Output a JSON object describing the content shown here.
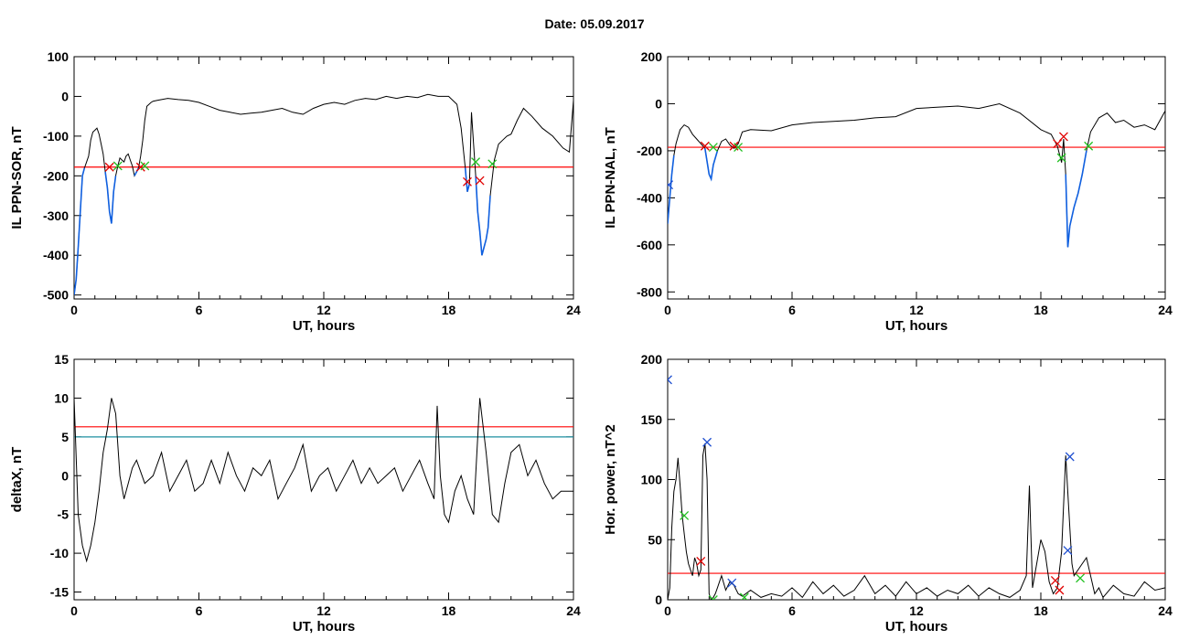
{
  "header": {
    "date_label": "Date:  05.09.2017"
  },
  "colors": {
    "signal": "#000000",
    "highlight": "#1060e0",
    "threshold": "#ff0000",
    "threshold2": "#1e8fa0",
    "onset": "#e00000",
    "end": "#20c020",
    "peak": "#2050d0"
  },
  "chart_data": [
    {
      "id": "sor",
      "type": "line",
      "title": "",
      "xlabel": "UT, hours",
      "ylabel": "IL PPN-SOR, nT",
      "xlim": [
        0,
        24
      ],
      "ylim": [
        -510,
        100
      ],
      "xticks": [
        0,
        6,
        12,
        18,
        24
      ],
      "yticks": [
        100,
        0,
        -100,
        -200,
        -300,
        -400,
        -500
      ],
      "thresholds": [
        {
          "value": -178,
          "color": "#ff0000"
        }
      ],
      "series": [
        {
          "x": [
            0,
            0.1,
            0.2,
            0.3,
            0.4,
            0.5,
            0.6,
            0.7,
            0.8,
            0.9,
            1.0,
            1.1,
            1.2,
            1.3,
            1.4,
            1.5,
            1.6,
            1.7,
            1.8,
            1.9,
            2.0,
            2.1,
            2.2,
            2.3,
            2.4,
            2.5,
            2.6,
            2.7,
            2.8,
            2.9,
            3.0,
            3.1,
            3.2,
            3.3,
            3.4,
            3.5,
            3.6,
            3.7,
            3.8,
            4,
            4.5,
            5,
            5.5,
            6,
            6.5,
            7,
            7.5,
            8,
            8.5,
            9,
            9.5,
            10,
            10.5,
            11,
            11.5,
            12,
            12.5,
            13,
            13.5,
            14,
            14.5,
            15,
            15.5,
            16,
            16.5,
            17,
            17.5,
            18,
            18.4,
            18.6,
            18.8,
            18.9,
            19.0,
            19.1,
            19.2,
            19.3,
            19.4,
            19.5,
            19.6,
            19.7,
            19.8,
            19.9,
            20.0,
            20.2,
            20.4,
            20.6,
            20.8,
            21.0,
            21.3,
            21.6,
            22,
            22.5,
            23,
            23.5,
            23.8,
            24
          ],
          "y": [
            -500,
            -460,
            -380,
            -290,
            -200,
            -180,
            -165,
            -150,
            -110,
            -90,
            -85,
            -80,
            -95,
            -120,
            -145,
            -190,
            -230,
            -290,
            -320,
            -240,
            -200,
            -175,
            -155,
            -160,
            -165,
            -150,
            -145,
            -160,
            -175,
            -200,
            -190,
            -180,
            -150,
            -110,
            -60,
            -25,
            -20,
            -15,
            -12,
            -10,
            -5,
            -8,
            -10,
            -15,
            -25,
            -35,
            -40,
            -45,
            -42,
            -40,
            -35,
            -30,
            -40,
            -45,
            -30,
            -20,
            -15,
            -20,
            -10,
            -5,
            -8,
            0,
            -5,
            0,
            -3,
            5,
            0,
            0,
            -20,
            -80,
            -180,
            -240,
            -220,
            -40,
            -120,
            -200,
            -290,
            -340,
            -400,
            -380,
            -360,
            -330,
            -250,
            -160,
            -120,
            -110,
            -100,
            -95,
            -60,
            -30,
            -50,
            -80,
            -100,
            -130,
            -140,
            -10
          ]
        }
      ],
      "onset_markers": [
        [
          1.7,
          -178
        ],
        [
          3.2,
          -178
        ],
        [
          18.9,
          -215
        ],
        [
          19.5,
          -212
        ]
      ],
      "end_markers": [
        [
          2.1,
          -175
        ],
        [
          3.4,
          -175
        ],
        [
          19.3,
          -165
        ],
        [
          20.1,
          -170
        ]
      ]
    },
    {
      "id": "nal",
      "type": "line",
      "title": "",
      "xlabel": "UT, hours",
      "ylabel": "IL PPN-NAL, nT",
      "xlim": [
        0,
        24
      ],
      "ylim": [
        -830,
        200
      ],
      "xticks": [
        0,
        6,
        12,
        18,
        24
      ],
      "yticks": [
        200,
        0,
        -200,
        -400,
        -600,
        -800
      ],
      "thresholds": [
        {
          "value": -185,
          "color": "#ff0000"
        }
      ],
      "series": [
        {
          "x": [
            0,
            0.1,
            0.2,
            0.3,
            0.4,
            0.5,
            0.6,
            0.8,
            1.0,
            1.2,
            1.4,
            1.6,
            1.8,
            2.0,
            2.1,
            2.2,
            2.4,
            2.6,
            2.8,
            3.0,
            3.2,
            3.4,
            3.6,
            4,
            5,
            6,
            7,
            8,
            9,
            10,
            11,
            12,
            13,
            14,
            15,
            16,
            17,
            18,
            18.5,
            18.8,
            19.0,
            19.1,
            19.2,
            19.3,
            19.4,
            19.6,
            19.8,
            20.0,
            20.2,
            20.4,
            20.8,
            21.2,
            21.6,
            22,
            22.5,
            23,
            23.5,
            24
          ],
          "y": [
            -510,
            -400,
            -300,
            -220,
            -170,
            -140,
            -110,
            -90,
            -100,
            -130,
            -150,
            -170,
            -190,
            -300,
            -320,
            -260,
            -200,
            -160,
            -150,
            -175,
            -190,
            -170,
            -120,
            -110,
            -115,
            -90,
            -80,
            -75,
            -70,
            -60,
            -55,
            -20,
            -15,
            -10,
            -20,
            0,
            -40,
            -110,
            -130,
            -180,
            -250,
            -150,
            -300,
            -610,
            -520,
            -440,
            -380,
            -300,
            -200,
            -120,
            -60,
            -40,
            -80,
            -70,
            -100,
            -90,
            -110,
            -30
          ]
        }
      ],
      "onset_markers": [
        [
          1.8,
          -180
        ],
        [
          3.2,
          -180
        ],
        [
          18.8,
          -170
        ],
        [
          19.1,
          -140
        ]
      ],
      "end_markers": [
        [
          2.2,
          -185
        ],
        [
          3.4,
          -185
        ],
        [
          19.0,
          -230
        ],
        [
          20.3,
          -180
        ]
      ],
      "peak_markers": [
        [
          0.05,
          -345
        ]
      ]
    },
    {
      "id": "deltax",
      "type": "line",
      "title": "",
      "xlabel": "UT, hours",
      "ylabel": "deltaX, nT",
      "xlim": [
        0,
        24
      ],
      "ylim": [
        -16,
        15
      ],
      "xticks": [
        0,
        6,
        12,
        18,
        24
      ],
      "yticks": [
        15,
        10,
        5,
        0,
        -5,
        -10,
        -15
      ],
      "thresholds": [
        {
          "value": 6.3,
          "color": "#ff0000"
        },
        {
          "value": 5.0,
          "color": "#1e8fa0"
        }
      ],
      "series": [
        {
          "x": [
            0,
            0.2,
            0.4,
            0.6,
            0.8,
            1.0,
            1.2,
            1.4,
            1.6,
            1.8,
            2.0,
            2.2,
            2.4,
            2.6,
            2.8,
            3.0,
            3.4,
            3.8,
            4.2,
            4.6,
            5.0,
            5.4,
            5.8,
            6.2,
            6.6,
            7.0,
            7.4,
            7.8,
            8.2,
            8.6,
            9.0,
            9.4,
            9.8,
            10.2,
            10.6,
            11.0,
            11.4,
            11.8,
            12.2,
            12.6,
            13.0,
            13.4,
            13.8,
            14.2,
            14.6,
            15.0,
            15.4,
            15.8,
            16.2,
            16.6,
            17.0,
            17.3,
            17.45,
            17.6,
            17.8,
            18.0,
            18.3,
            18.6,
            18.9,
            19.2,
            19.5,
            19.8,
            20.1,
            20.4,
            20.7,
            21.0,
            21.4,
            21.8,
            22.2,
            22.6,
            23.0,
            23.4,
            23.8,
            24
          ],
          "y": [
            10,
            -5,
            -9,
            -11,
            -9,
            -6,
            -2,
            3,
            6,
            10,
            8,
            0,
            -3,
            -1,
            1,
            2,
            -1,
            0,
            3,
            -2,
            0,
            2,
            -2,
            -1,
            2,
            -1,
            3,
            0,
            -2,
            1,
            0,
            2,
            -3,
            -1,
            1,
            4,
            -2,
            0,
            1,
            -2,
            0,
            2,
            -1,
            1,
            -1,
            0,
            1,
            -2,
            0,
            2,
            -1,
            -3,
            9,
            0,
            -5,
            -6,
            -2,
            0,
            -3,
            -5,
            10,
            3,
            -5,
            -6,
            -1,
            3,
            4,
            0,
            2,
            -1,
            -3,
            -2,
            -2,
            -2
          ]
        }
      ]
    },
    {
      "id": "power",
      "type": "line",
      "title": "",
      "xlabel": "UT, hours",
      "ylabel": "Hor. power, nT^2",
      "xlim": [
        0,
        24
      ],
      "ylim": [
        0,
        200
      ],
      "xticks": [
        0,
        6,
        12,
        18,
        24
      ],
      "yticks": [
        200,
        150,
        100,
        50,
        0
      ],
      "thresholds": [
        {
          "value": 22,
          "color": "#ff0000"
        }
      ],
      "series": [
        {
          "x": [
            0,
            0.1,
            0.2,
            0.3,
            0.4,
            0.5,
            0.6,
            0.7,
            0.8,
            0.9,
            1.0,
            1.1,
            1.2,
            1.3,
            1.4,
            1.5,
            1.6,
            1.7,
            1.8,
            1.9,
            2.0,
            2.1,
            2.2,
            2.3,
            2.4,
            2.6,
            2.8,
            3.0,
            3.2,
            3.4,
            3.6,
            4.0,
            4.5,
            5.0,
            5.5,
            6.0,
            6.5,
            7.0,
            7.5,
            8.0,
            8.5,
            9.0,
            9.5,
            10.0,
            10.5,
            11.0,
            11.5,
            12.0,
            12.5,
            13.0,
            13.5,
            14.0,
            14.5,
            15.0,
            15.5,
            16.0,
            16.5,
            17.0,
            17.3,
            17.45,
            17.6,
            17.8,
            18.0,
            18.2,
            18.4,
            18.6,
            18.8,
            19.0,
            19.2,
            19.4,
            19.5,
            19.6,
            19.8,
            20.0,
            20.2,
            20.4,
            20.6,
            20.8,
            21.0,
            21.5,
            22.0,
            22.5,
            23.0,
            23.5,
            24
          ],
          "y": [
            0,
            10,
            60,
            90,
            100,
            118,
            95,
            70,
            55,
            40,
            30,
            25,
            20,
            35,
            30,
            20,
            25,
            120,
            130,
            100,
            5,
            0,
            2,
            5,
            10,
            20,
            8,
            15,
            12,
            5,
            3,
            8,
            2,
            5,
            3,
            10,
            2,
            15,
            5,
            12,
            3,
            8,
            20,
            5,
            12,
            3,
            15,
            5,
            10,
            3,
            8,
            5,
            12,
            3,
            10,
            5,
            2,
            8,
            20,
            95,
            10,
            30,
            50,
            40,
            15,
            5,
            10,
            40,
            120,
            60,
            30,
            20,
            25,
            30,
            35,
            20,
            5,
            10,
            2,
            12,
            5,
            3,
            15,
            8,
            10
          ]
        }
      ],
      "onset_markers": [
        [
          1.6,
          32
        ],
        [
          18.7,
          16
        ],
        [
          18.9,
          8
        ]
      ],
      "end_markers": [
        [
          0.8,
          70
        ],
        [
          2.2,
          0
        ],
        [
          3.7,
          2
        ],
        [
          19.9,
          18
        ]
      ],
      "peak_markers": [
        [
          0,
          183
        ],
        [
          1.9,
          131
        ],
        [
          3.1,
          14
        ],
        [
          19.3,
          41
        ],
        [
          19.4,
          119
        ]
      ]
    }
  ]
}
